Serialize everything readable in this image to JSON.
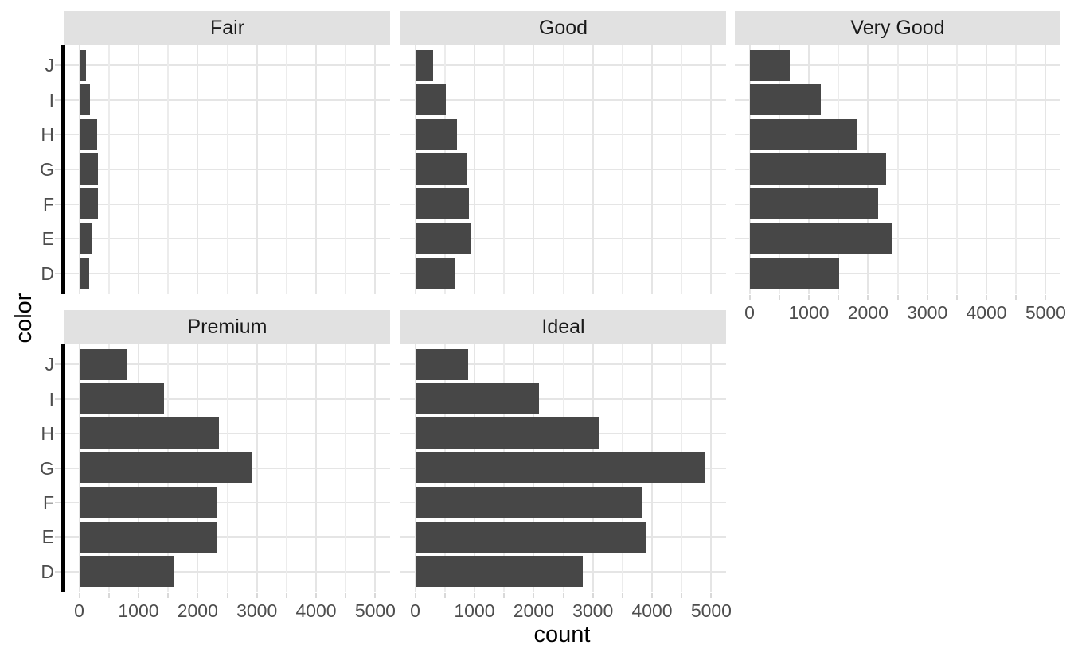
{
  "chart_data": {
    "type": "bar",
    "orientation": "horizontal",
    "title": "",
    "xlabel": "count",
    "ylabel": "color",
    "facet_variable_values": [
      "Fair",
      "Good",
      "Very Good",
      "Premium",
      "Ideal"
    ],
    "categories_top_to_bottom": [
      "J",
      "I",
      "H",
      "G",
      "F",
      "E",
      "D"
    ],
    "series": [
      {
        "name": "Fair",
        "values": [
          119,
          175,
          303,
          314,
          312,
          224,
          163
        ]
      },
      {
        "name": "Good",
        "values": [
          307,
          522,
          702,
          871,
          909,
          933,
          662
        ]
      },
      {
        "name": "Very Good",
        "values": [
          678,
          1204,
          1824,
          2299,
          2164,
          2400,
          1513
        ]
      },
      {
        "name": "Premium",
        "values": [
          808,
          1428,
          2360,
          2924,
          2331,
          2337,
          1603
        ]
      },
      {
        "name": "Ideal",
        "values": [
          896,
          2093,
          3115,
          4884,
          3826,
          3903,
          2834
        ]
      }
    ],
    "xlim": [
      0,
      5000
    ],
    "x_ticks": [
      0,
      1000,
      2000,
      3000,
      4000,
      5000
    ],
    "x_minor_ticks": [
      500,
      1500,
      2500,
      3500,
      4500
    ],
    "grid": "vertical major+minor, horizontal major at category centers",
    "legend": "none"
  },
  "colors": {
    "bar_fill": "#474747",
    "strip_background": "#E1E1E1",
    "strip_text": "#1A1A1A",
    "grid_major": "#E5E5E5",
    "grid_minor": "#ECECEC",
    "axis_text": "#4D4D4D",
    "axis_title_text": "#000000",
    "y_axis_line": "#000000",
    "tick_mark": "#D9D9D9",
    "background": "#FFFFFF"
  }
}
